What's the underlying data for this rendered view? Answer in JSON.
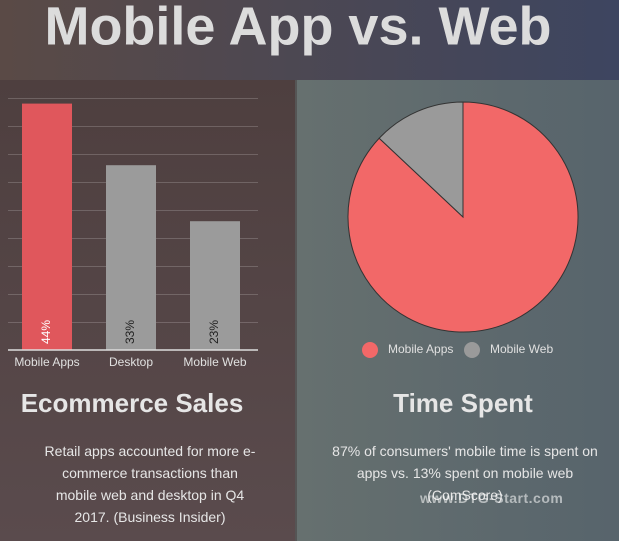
{
  "title": "Mobile App vs. Web",
  "watermark": "www.DTG-Start.com",
  "chart_data": [
    {
      "type": "bar",
      "title": "Ecommerce Sales",
      "caption": "Retail apps accounted for more e-commerce transactions than mobile web and desktop in Q4 2017. (Business Insider)",
      "categories": [
        "Mobile Apps",
        "Desktop",
        "Mobile Web"
      ],
      "values": [
        44,
        33,
        23
      ],
      "value_labels": [
        "44%",
        "33%",
        "23%"
      ],
      "colors": [
        "#e0575c",
        "#9b9b9b",
        "#9b9b9b"
      ],
      "ylim": [
        0,
        45
      ],
      "grid": true
    },
    {
      "type": "pie",
      "title": "Time Spent",
      "caption": "87% of consumers' mobile time is spent on apps vs. 13% spent on mobile web (ComScore)",
      "categories": [
        "Mobile Apps",
        "Mobile Web"
      ],
      "values": [
        87,
        13
      ],
      "colors": [
        "#f26868",
        "#9a9a9a"
      ]
    }
  ]
}
